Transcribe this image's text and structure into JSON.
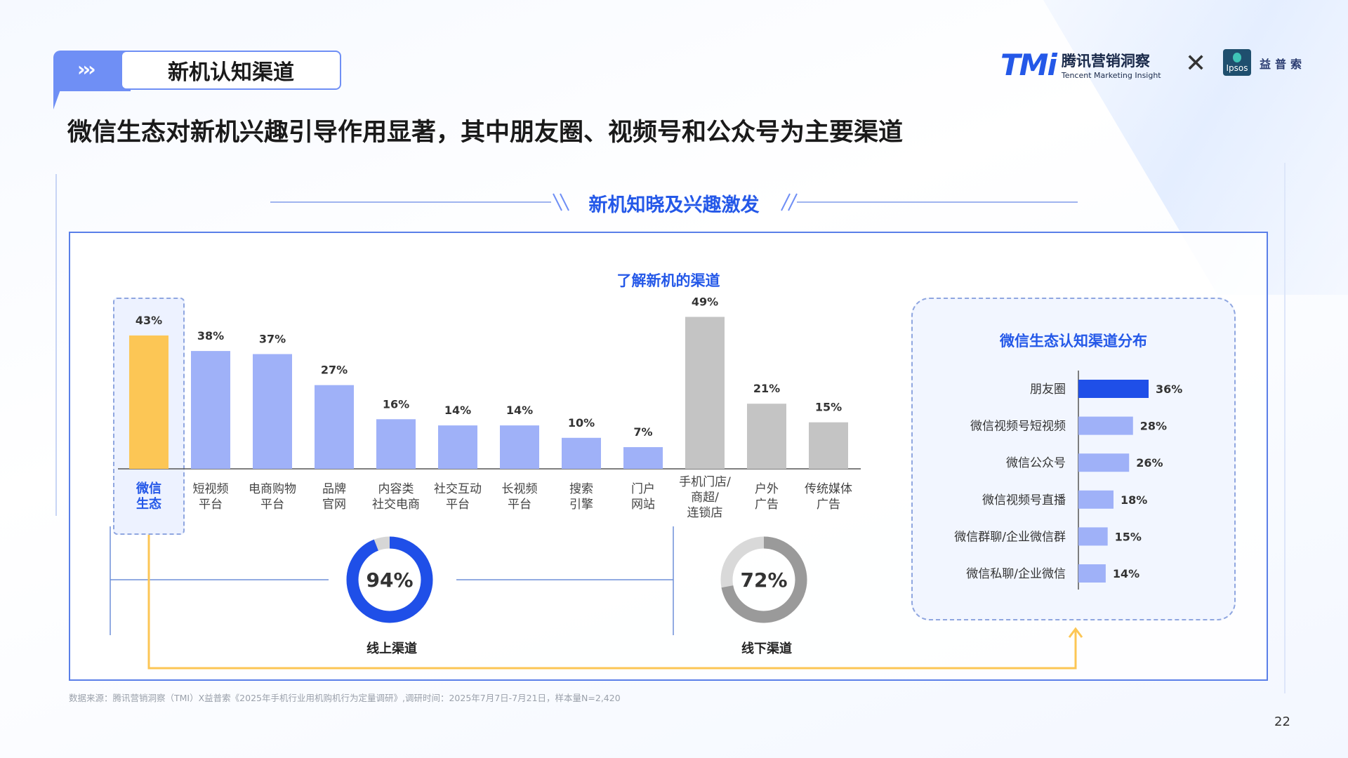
{
  "section": {
    "tag": "新机认知渠道",
    "arrows": "›››"
  },
  "headline": "微信生态对新机兴趣引导作用显著，其中朋友圈、视频号和公众号为主要渠道",
  "logos": {
    "tmi_mark": "TMi",
    "tmi_cn": "腾讯营销洞察",
    "tmi_en": "Tencent Marketing Insight",
    "cross": "✕",
    "ipsos": "Ipsos",
    "ipsos_cn": "益普索"
  },
  "subtitle": "新机知晓及兴趣激发",
  "source": "数据来源：腾讯营销洞察（TMI）X益普索《2025年手机行业用机购机行为定量调研》,调研时间：2025年7月7日-7月21日，样本量N=2,420",
  "page_number": "22",
  "colors": {
    "highlight": "#fcc655",
    "online": "#9fb1f8",
    "offline": "#c4c4c4",
    "primary_blue": "#1f4fe8",
    "light_blue": "#9fb1f8"
  },
  "chart_data": [
    {
      "type": "bar",
      "title": "了解新机的渠道",
      "categories": [
        [
          "微信",
          "生态"
        ],
        [
          "短视频",
          "平台"
        ],
        [
          "电商购物",
          "平台"
        ],
        [
          "品牌",
          "官网"
        ],
        [
          "内容类",
          "社交电商"
        ],
        [
          "社交互动",
          "平台"
        ],
        [
          "长视频",
          "平台"
        ],
        [
          "搜索",
          "引擎"
        ],
        [
          "门户",
          "网站"
        ],
        [
          "手机门店/",
          "商超/",
          "连锁店"
        ],
        [
          "户外",
          "广告"
        ],
        [
          "传统媒体",
          "广告"
        ]
      ],
      "values": [
        43,
        38,
        37,
        27,
        16,
        14,
        14,
        10,
        7,
        49,
        21,
        15
      ],
      "value_labels": [
        "43%",
        "38%",
        "37%",
        "27%",
        "16%",
        "14%",
        "14%",
        "10%",
        "7%",
        "49%",
        "21%",
        "15%"
      ],
      "groups": [
        "highlight",
        "online",
        "online",
        "online",
        "online",
        "online",
        "online",
        "online",
        "online",
        "offline",
        "offline",
        "offline"
      ],
      "ylim": [
        0,
        55
      ]
    },
    {
      "type": "pie",
      "name": "线上渠道",
      "value": 94,
      "label": "94%"
    },
    {
      "type": "pie",
      "name": "线下渠道",
      "value": 72,
      "label": "72%"
    },
    {
      "type": "bar",
      "orientation": "horizontal",
      "title": "微信生态认知渠道分布",
      "categories": [
        "朋友圈",
        "微信视频号短视频",
        "微信公众号",
        "微信视频号直播",
        "微信群聊/企业微信群",
        "微信私聊/企业微信"
      ],
      "values": [
        36,
        28,
        26,
        18,
        15,
        14
      ],
      "value_labels": [
        "36%",
        "28%",
        "26%",
        "18%",
        "15%",
        "14%"
      ],
      "xlim": [
        0,
        40
      ]
    }
  ]
}
